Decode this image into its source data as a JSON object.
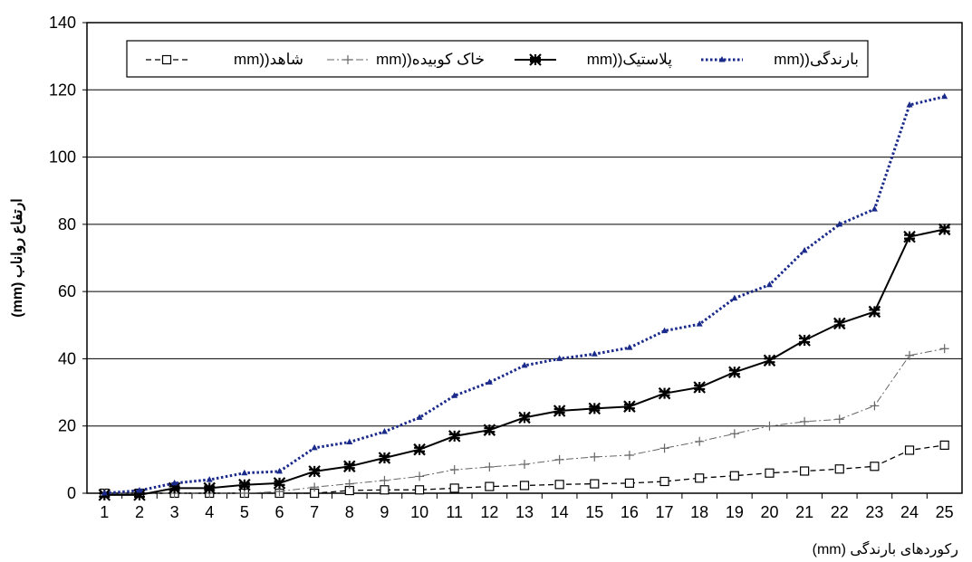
{
  "chart_data": {
    "type": "line",
    "title": "",
    "xlabel": "رکوردهای بارندگی (mm)",
    "ylabel": "ارتفاع رواناب (mm)",
    "ylim": [
      0,
      140
    ],
    "yticks": [
      0,
      20,
      40,
      60,
      80,
      100,
      120,
      140
    ],
    "grid": "horizontal",
    "legend_position": "top",
    "categories": [
      "1",
      "2",
      "3",
      "4",
      "5",
      "6",
      "7",
      "8",
      "9",
      "10",
      "11",
      "12",
      "13",
      "14",
      "15",
      "16",
      "17",
      "18",
      "19",
      "20",
      "21",
      "22",
      "23",
      "24",
      "25"
    ],
    "series": [
      {
        "name": "شاهد((mm",
        "style": "dashed",
        "marker": "open-square",
        "color": "#000000",
        "values": [
          0,
          0,
          0,
          0,
          0,
          0,
          0,
          0.8,
          1,
          1,
          1.5,
          2,
          2.3,
          2.6,
          2.8,
          3,
          3.5,
          4.5,
          5.2,
          6,
          6.6,
          7.2,
          8,
          12.8,
          14.3
        ]
      },
      {
        "name": "خاک کوبیده((mm",
        "style": "dashdot",
        "marker": "plus",
        "color": "#666666",
        "values": [
          0,
          0,
          0,
          0,
          0,
          0.5,
          1.8,
          2.8,
          3.8,
          5,
          7,
          7.8,
          8.6,
          10,
          10.8,
          11.3,
          13.4,
          15.4,
          17.7,
          20,
          21.3,
          22,
          26,
          41,
          43
        ]
      },
      {
        "name": "پلاستیک((mm",
        "style": "solid",
        "marker": "star-x",
        "color": "#000000",
        "values": [
          -0.5,
          -0.5,
          1.5,
          1.5,
          2.5,
          3,
          6.5,
          8,
          10.5,
          13,
          17,
          18.8,
          22.5,
          24.5,
          25.2,
          25.8,
          29.7,
          31.5,
          36,
          39.5,
          45.5,
          50.5,
          54,
          76.3,
          78.5
        ]
      },
      {
        "name": "بارندگی((mm",
        "style": "dotted",
        "marker": "triangle",
        "color": "#1a2a8a",
        "values": [
          0,
          0.8,
          3,
          4,
          6,
          6.5,
          13.5,
          15.2,
          18.3,
          22.5,
          29,
          33,
          38,
          40,
          41.4,
          43.3,
          48.3,
          50.3,
          58,
          62,
          72.2,
          80,
          84.5,
          115.5,
          118
        ]
      }
    ]
  }
}
